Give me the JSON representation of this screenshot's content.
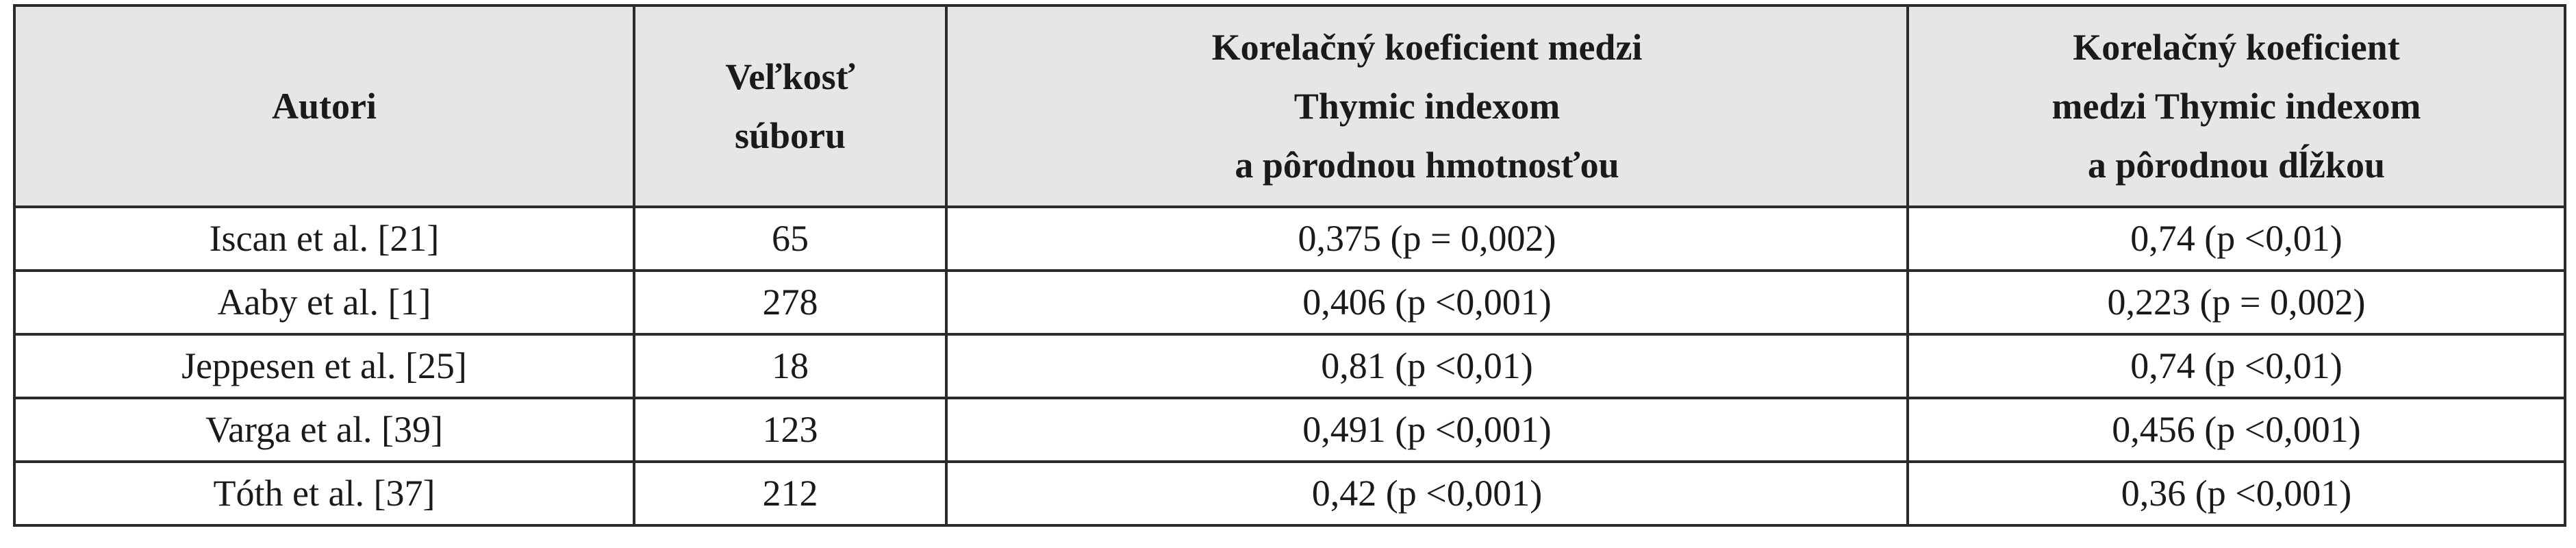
{
  "table": {
    "header": [
      [
        "Autori"
      ],
      [
        "Veľkosť",
        "súboru"
      ],
      [
        "Korelačný koeficient medzi",
        "Thymic indexom",
        "a pôrodnou hmotnosťou"
      ],
      [
        "Korelačný koeficient",
        "medzi Thymic indexom",
        "a pôrodnou dĺžkou"
      ]
    ],
    "rows": [
      [
        "Iscan et al. [21]",
        "65",
        "0,375 (p = 0,002)",
        "0,74 (p <0,01)"
      ],
      [
        "Aaby et al. [1]",
        "278",
        "0,406 (p <0,001)",
        "0,223 (p = 0,002)"
      ],
      [
        "Jeppesen et al. [25]",
        "18",
        "0,81 (p <0,01)",
        "0,74 (p <0,01)"
      ],
      [
        "Varga et al. [39]",
        "123",
        "0,491 (p <0,001)",
        "0,456 (p <0,001)"
      ],
      [
        "Tóth et al. [37]",
        "212",
        "0,42 (p <0,001)",
        "0,36 (p <0,001)"
      ]
    ]
  }
}
